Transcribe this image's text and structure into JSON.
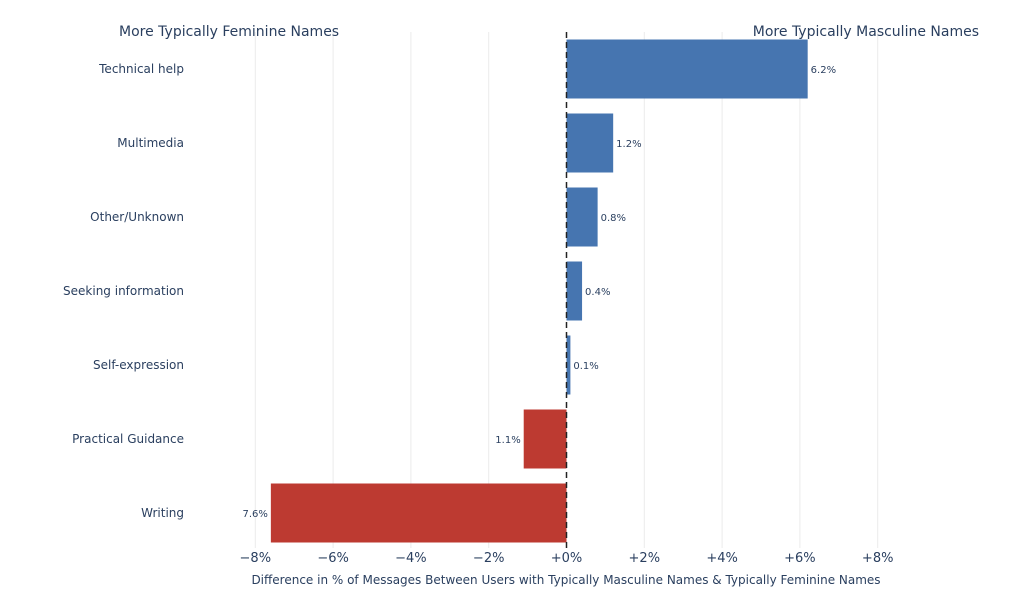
{
  "chart_data": {
    "type": "bar",
    "orientation": "horizontal",
    "left_title": "More Typically Feminine Names",
    "right_title": "More Typically Masculine Names",
    "xlabel": "Difference in % of Messages Between Users with Typically Masculine Names & Typically Feminine Names",
    "xlim": [
      -8.5,
      8.5
    ],
    "x_ticks": [
      -8,
      -6,
      -4,
      -2,
      0,
      2,
      4,
      6,
      8
    ],
    "x_tick_labels": [
      "−8%",
      "−6%",
      "−4%",
      "−2%",
      "+0%",
      "+2%",
      "+4%",
      "+6%",
      "+8%"
    ],
    "grid": true,
    "zero_line": "dashed",
    "colors": {
      "positive": "#4675b0",
      "negative": "#bd3a31"
    },
    "categories": [
      "Technical help",
      "Multimedia",
      "Other/Unknown",
      "Seeking information",
      "Self-expression",
      "Practical Guidance",
      "Writing"
    ],
    "values": [
      6.2,
      1.2,
      0.8,
      0.4,
      0.1,
      -1.1,
      -7.6
    ],
    "value_labels": [
      "6.2%",
      "1.2%",
      "0.8%",
      "0.4%",
      "0.1%",
      "1.1%",
      "7.6%"
    ]
  }
}
